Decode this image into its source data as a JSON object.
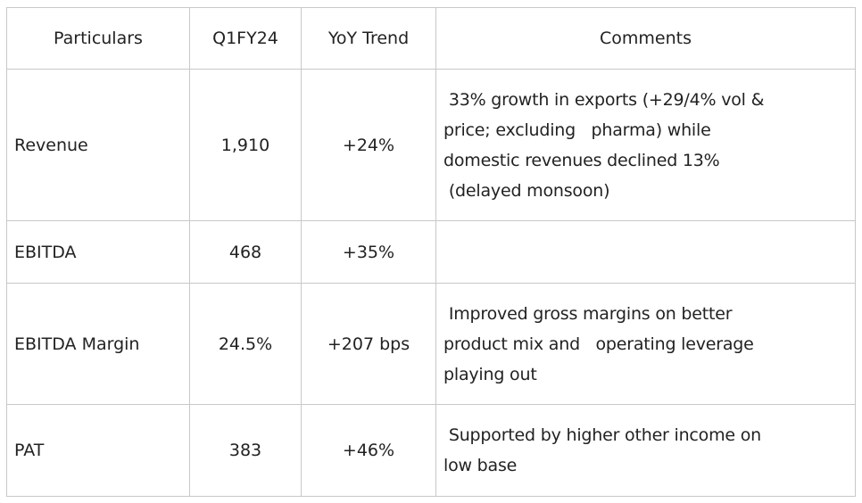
{
  "headers": [
    "Particulars",
    "Q1FY24",
    "YoY Trend",
    "Comments"
  ],
  "rows": [
    {
      "particular": "Revenue",
      "value": "1,910",
      "trend": "+24%",
      "comment": [
        " 33% growth in exports (+29/4% vol &",
        "price; excluding   pharma) while",
        "domestic revenues declined 13%",
        " (delayed monsoon)"
      ]
    },
    {
      "particular": "EBITDA",
      "value": "468",
      "trend": "+35%",
      "comment": []
    },
    {
      "particular": "EBITDA Margin",
      "value": "24.5%",
      "trend": "+207 bps",
      "comment": [
        " Improved gross margins on better",
        "product mix and   operating leverage",
        "playing out"
      ]
    },
    {
      "particular": "PAT",
      "value": "383",
      "trend": "+46%",
      "comment": [
        " Supported by higher other income on",
        "low base"
      ]
    }
  ]
}
